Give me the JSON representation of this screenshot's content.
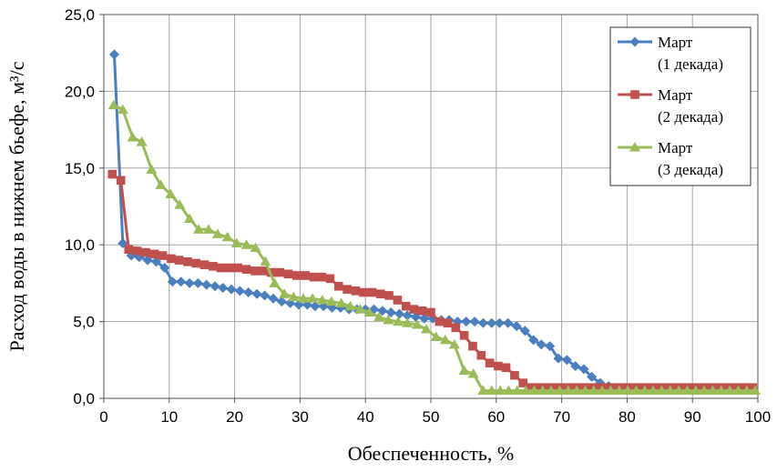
{
  "chart_data": {
    "type": "line",
    "title": "",
    "xlabel": "Обеспеченность, %",
    "ylabel": "Расход воды в нижнем бьефе, м³/с",
    "xlim": [
      0,
      100
    ],
    "ylim": [
      0,
      25
    ],
    "xticks": [
      "0",
      "10",
      "20",
      "30",
      "40",
      "50",
      "60",
      "70",
      "80",
      "90",
      "100"
    ],
    "yticks": [
      "0,0",
      "5,0",
      "10,0",
      "15,0",
      "20,0",
      "25,0"
    ],
    "grid": true,
    "legend_position": "top-right",
    "series": [
      {
        "name": "Март (1 декада)",
        "legend_lines": [
          "Март",
          "(1 декада)"
        ],
        "color": "#4a7ebf",
        "marker": "diamond",
        "x": [
          1.6,
          2.9,
          4.2,
          5.4,
          6.7,
          8.0,
          9.3,
          10.5,
          11.8,
          13.1,
          14.4,
          15.7,
          17.0,
          18.2,
          19.5,
          20.8,
          22.1,
          23.4,
          24.6,
          25.9,
          27.2,
          28.5,
          29.8,
          31.1,
          32.3,
          33.6,
          34.9,
          36.2,
          37.5,
          38.7,
          40.0,
          41.3,
          42.6,
          43.9,
          45.2,
          46.4,
          47.7,
          49.0,
          50.3,
          51.6,
          52.8,
          54.1,
          55.4,
          56.7,
          58.0,
          59.3,
          60.5,
          61.8,
          63.1,
          64.4,
          65.7,
          66.9,
          68.2,
          69.5,
          70.8,
          72.1,
          73.4,
          74.6,
          75.9,
          77.2
        ],
        "values": [
          22.4,
          10.1,
          9.3,
          9.2,
          9.0,
          8.9,
          8.5,
          7.6,
          7.6,
          7.5,
          7.5,
          7.4,
          7.3,
          7.2,
          7.1,
          7.0,
          6.9,
          6.8,
          6.7,
          6.5,
          6.3,
          6.2,
          6.1,
          6.1,
          6.0,
          6.0,
          5.9,
          5.9,
          5.8,
          5.8,
          5.8,
          5.8,
          5.7,
          5.6,
          5.5,
          5.4,
          5.3,
          5.2,
          5.2,
          5.1,
          5.1,
          5.0,
          5.0,
          5.0,
          4.9,
          4.9,
          4.9,
          4.9,
          4.7,
          4.4,
          3.8,
          3.5,
          3.4,
          2.6,
          2.5,
          2.1,
          1.9,
          1.4,
          1.0,
          0.8
        ]
      },
      {
        "name": "Март (2 декада)",
        "legend_lines": [
          "Март",
          "(2 декада)"
        ],
        "color": "#c0504d",
        "marker": "square",
        "x": [
          1.3,
          2.6,
          3.8,
          5.1,
          6.4,
          7.7,
          9.0,
          10.3,
          11.5,
          12.8,
          14.1,
          15.4,
          16.7,
          17.9,
          19.2,
          20.5,
          21.8,
          23.1,
          24.4,
          25.6,
          26.9,
          28.2,
          29.5,
          30.8,
          32.1,
          33.3,
          34.6,
          35.9,
          37.2,
          38.5,
          39.7,
          41.0,
          42.3,
          43.6,
          44.9,
          46.2,
          47.4,
          48.7,
          50.0,
          51.3,
          52.6,
          53.8,
          55.1,
          56.4,
          57.7,
          59.0,
          60.3,
          61.5,
          62.8,
          64.1
        ],
        "values": [
          14.6,
          14.2,
          9.7,
          9.6,
          9.5,
          9.4,
          9.3,
          9.1,
          9.0,
          8.9,
          8.8,
          8.7,
          8.6,
          8.5,
          8.5,
          8.5,
          8.4,
          8.3,
          8.3,
          8.2,
          8.2,
          8.1,
          8.0,
          8.0,
          7.9,
          7.9,
          7.8,
          7.3,
          7.1,
          7.0,
          6.9,
          6.9,
          6.8,
          6.7,
          6.4,
          6.0,
          5.8,
          5.7,
          5.6,
          5.0,
          4.9,
          4.6,
          4.1,
          3.4,
          2.8,
          2.3,
          2.1,
          2.0,
          1.5,
          1.0
        ]
      },
      {
        "name": "Март (3 декада)",
        "legend_lines": [
          "Март",
          "(3 декада)"
        ],
        "color": "#9bbb59",
        "marker": "triangle",
        "x": [
          1.5,
          2.9,
          4.4,
          5.8,
          7.3,
          8.7,
          10.2,
          11.6,
          13.1,
          14.5,
          16.0,
          17.4,
          18.9,
          20.3,
          21.8,
          23.2,
          24.7,
          26.1,
          27.6,
          29.0,
          30.5,
          31.9,
          33.4,
          34.8,
          36.3,
          37.7,
          39.2,
          40.6,
          42.1,
          43.5,
          45.0,
          46.4,
          47.9,
          49.3,
          50.8,
          52.2,
          53.6,
          55.1,
          56.5,
          58.0
        ],
        "values": [
          19.1,
          18.8,
          17.0,
          16.7,
          14.9,
          13.9,
          13.3,
          12.6,
          11.7,
          11.0,
          11.0,
          10.7,
          10.5,
          10.1,
          10.0,
          9.8,
          8.9,
          7.5,
          6.8,
          6.6,
          6.5,
          6.5,
          6.4,
          6.3,
          6.2,
          6.0,
          5.8,
          5.6,
          5.3,
          5.1,
          5.0,
          4.9,
          4.8,
          4.5,
          4.0,
          3.8,
          3.5,
          1.8,
          1.6,
          0.5
        ]
      }
    ],
    "tail": {
      "x_end": 100,
      "values": {
        "Март (1 декада)": 0.65,
        "Март (2 декада)": 0.7,
        "Март (3 декада)": 0.5
      }
    }
  }
}
